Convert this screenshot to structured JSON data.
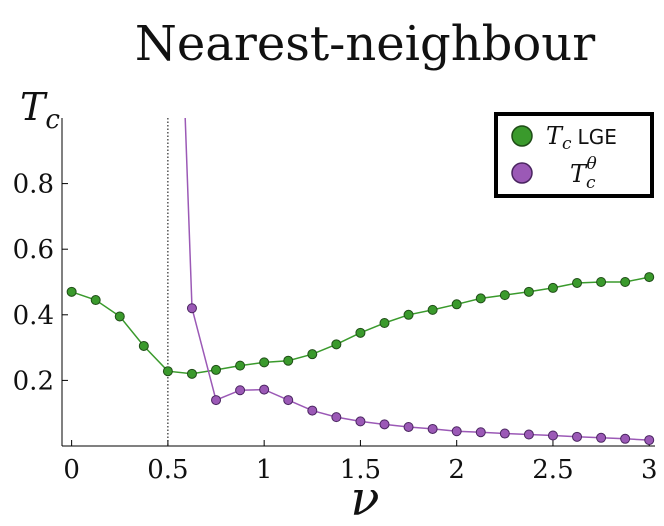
{
  "chart_data": {
    "type": "line",
    "title": "Nearest-neighbour",
    "xlabel": "ν",
    "ylabel": "T_c",
    "xlim": [
      -0.05,
      3.03
    ],
    "ylim": [
      0.0,
      1.0
    ],
    "x_ticks": [
      0,
      0.5,
      1,
      1.5,
      2,
      2.5,
      3
    ],
    "x_tick_labels": [
      "0",
      "0.5",
      "1",
      "1.5",
      "2",
      "2.5",
      "3"
    ],
    "y_ticks": [
      0.2,
      0.4,
      0.6,
      0.8
    ],
    "y_tick_labels": [
      "0.2",
      "0.4",
      "0.6",
      "0.8"
    ],
    "vertical_line": {
      "x": 0.5,
      "style": "dotted",
      "color": "#000000"
    },
    "grid": false,
    "legend_position": "top-right",
    "series": [
      {
        "name": "T_c LGE",
        "legend_main": "T",
        "legend_sub": "c",
        "legend_tail": "LGE",
        "color": "#3a9a2c",
        "edge": "#1f4d17",
        "x": [
          0,
          0.125,
          0.25,
          0.375,
          0.5,
          0.625,
          0.75,
          0.875,
          1.0,
          1.125,
          1.25,
          1.375,
          1.5,
          1.625,
          1.75,
          1.875,
          2.0,
          2.125,
          2.25,
          2.375,
          2.5,
          2.625,
          2.75,
          2.875,
          3.0
        ],
        "y": [
          0.47,
          0.445,
          0.395,
          0.305,
          0.228,
          0.22,
          0.232,
          0.245,
          0.255,
          0.26,
          0.28,
          0.31,
          0.345,
          0.375,
          0.4,
          0.415,
          0.432,
          0.45,
          0.46,
          0.47,
          0.482,
          0.497,
          0.5,
          0.5,
          0.515
        ]
      },
      {
        "name": "T_c^θ",
        "legend_main": "T",
        "legend_sub": "c",
        "legend_sup": "θ",
        "color": "#9b59b6",
        "edge": "#4a2560",
        "markers_start_index": 1,
        "x": [
          0.59,
          0.625,
          0.75,
          0.875,
          1.0,
          1.125,
          1.25,
          1.375,
          1.5,
          1.625,
          1.75,
          1.875,
          2.0,
          2.125,
          2.25,
          2.375,
          2.5,
          2.625,
          2.75,
          2.875,
          3.0
        ],
        "y": [
          1.0,
          0.42,
          0.14,
          0.17,
          0.172,
          0.14,
          0.108,
          0.088,
          0.075,
          0.066,
          0.058,
          0.052,
          0.045,
          0.042,
          0.038,
          0.035,
          0.032,
          0.028,
          0.025,
          0.022,
          0.018
        ]
      }
    ]
  }
}
